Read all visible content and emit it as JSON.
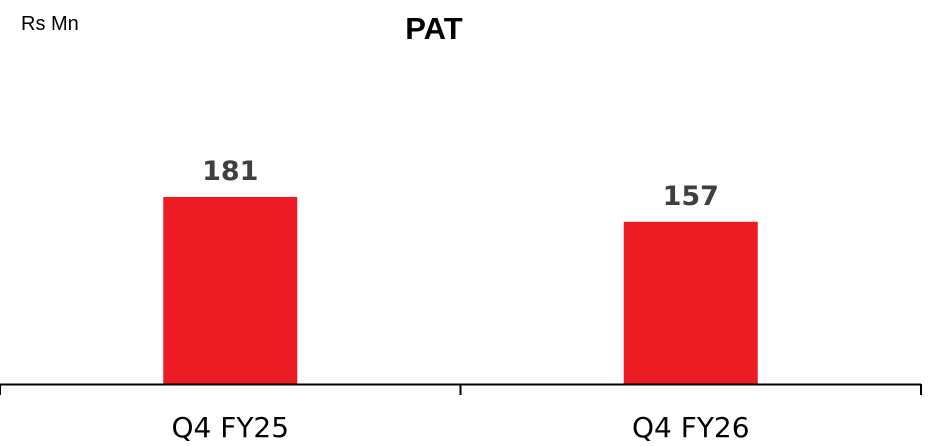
{
  "chart_data": {
    "type": "bar",
    "title": "PAT",
    "unit_label": "Rs Mn",
    "categories": [
      "Q4 FY25",
      "Q4 FY26"
    ],
    "values": [
      181,
      157
    ],
    "data_labels": [
      "181",
      "157"
    ],
    "ylim": [
      0,
      181
    ],
    "grid": false,
    "legend": "none",
    "bar_color": "#ED1C24",
    "axis_color": "#000000",
    "label_color": "#3F3F3F"
  }
}
